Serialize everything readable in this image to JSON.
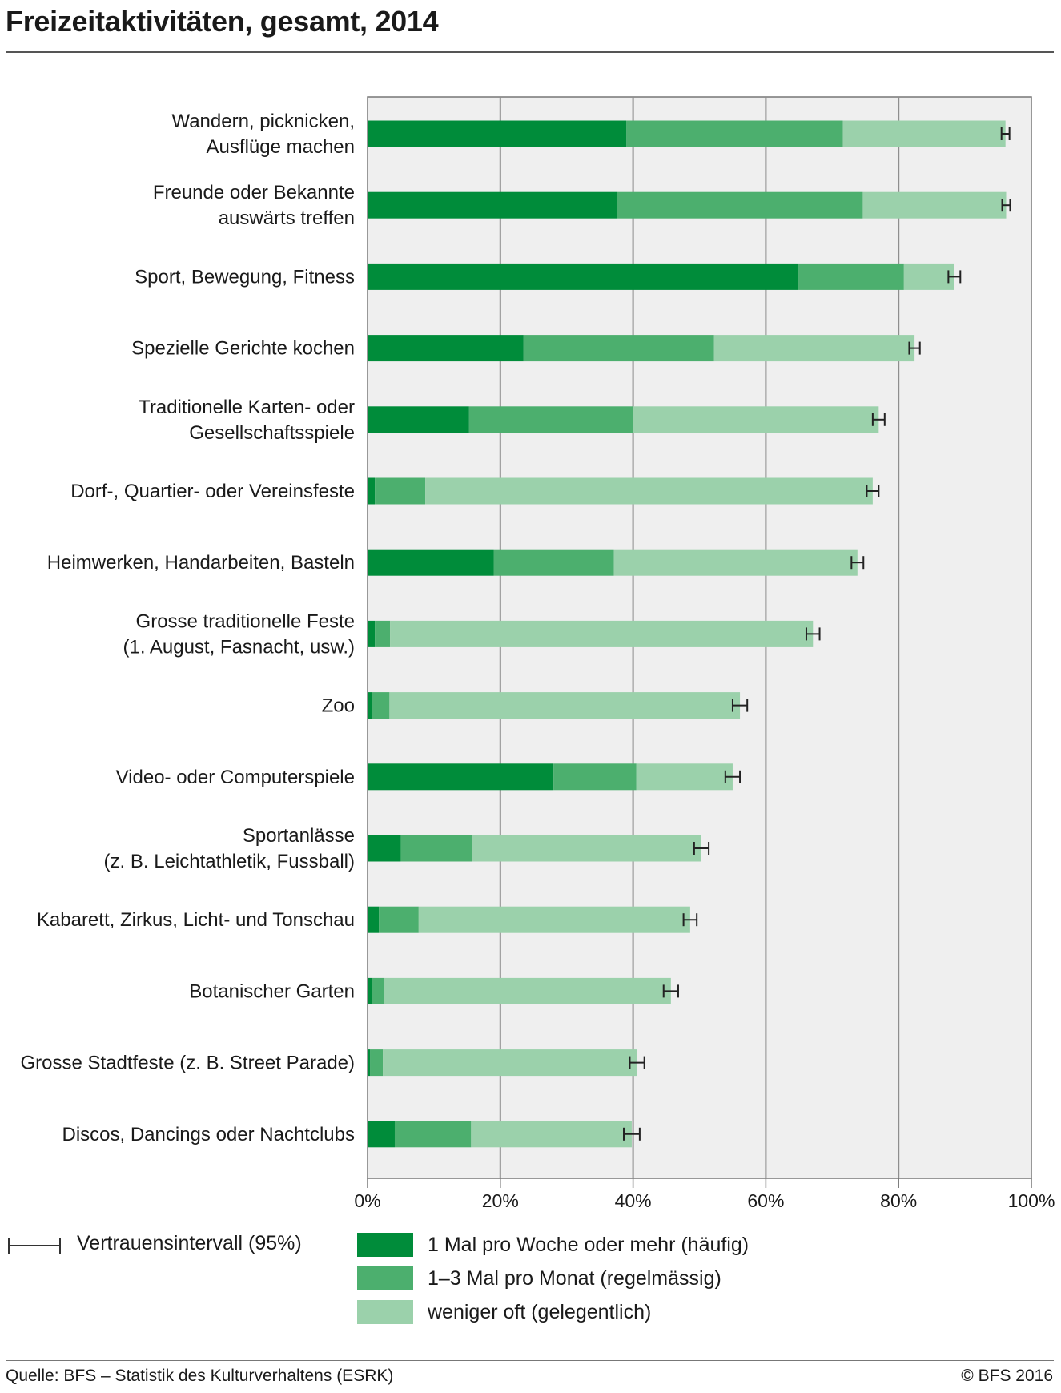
{
  "header": {
    "title": "Freizeitaktivitäten, gesamt, 2014"
  },
  "chart_data": {
    "type": "bar",
    "orientation": "horizontal",
    "stacked": true,
    "title": "Freizeitaktivitäten, gesamt, 2014",
    "xlabel": "",
    "ylabel": "",
    "xlim": [
      0,
      100
    ],
    "x_ticks": [
      "0%",
      "20%",
      "40%",
      "60%",
      "80%",
      "100%"
    ],
    "grid": true,
    "legend_position": "bottom",
    "categories": [
      [
        "Wandern, picknicken,",
        "Ausflüge machen"
      ],
      [
        "Freunde oder Bekannte",
        "auswärts treffen"
      ],
      [
        "Sport, Bewegung, Fitness"
      ],
      [
        "Spezielle Gerichte kochen"
      ],
      [
        "Traditionelle Karten- oder",
        "Gesellschaftsspiele"
      ],
      [
        "Dorf-, Quartier- oder Vereinsfeste"
      ],
      [
        "Heimwerken, Handarbeiten, Basteln"
      ],
      [
        "Grosse traditionelle Feste",
        "(1. August, Fasnacht, usw.)"
      ],
      [
        "Zoo"
      ],
      [
        "Video- oder Computerspiele"
      ],
      [
        "Sportanlässe",
        "(z. B. Leichtathletik, Fussball)"
      ],
      [
        "Kabarett, Zirkus, Licht- und Tonschau"
      ],
      [
        "Botanischer Garten"
      ],
      [
        "Grosse Stadtfeste (z. B. Street Parade)"
      ],
      [
        "Discos, Dancings oder Nachtclubs"
      ]
    ],
    "series": [
      {
        "name": "1 Mal pro Woche oder mehr (häufig)",
        "color": "#008c3a",
        "values": [
          39.0,
          37.6,
          64.9,
          23.5,
          15.3,
          1.1,
          19.0,
          1.1,
          0.7,
          28.0,
          5.0,
          1.7,
          0.7,
          0.4,
          4.1
        ]
      },
      {
        "name": "1–3 Mal pro Monat (regelmässig)",
        "color": "#4caf6e",
        "values": [
          32.6,
          37.0,
          15.9,
          28.7,
          24.7,
          7.6,
          18.1,
          2.3,
          2.6,
          12.5,
          10.8,
          6.0,
          1.8,
          1.9,
          11.5
        ]
      },
      {
        "name": "weniger oft (gelegentlich)",
        "color": "#9bd1ab",
        "values": [
          24.5,
          21.6,
          7.6,
          30.2,
          37.0,
          67.4,
          36.7,
          63.7,
          52.8,
          14.5,
          34.5,
          40.9,
          43.2,
          38.3,
          24.2
        ]
      }
    ],
    "error_bars": {
      "label": "Vertrauensintervall (95%)",
      "ci_halfwidth": [
        0.6,
        0.6,
        0.9,
        0.8,
        0.9,
        0.9,
        0.9,
        1.0,
        1.1,
        1.1,
        1.1,
        1.0,
        1.1,
        1.1,
        1.2
      ]
    }
  },
  "legend": {
    "ci_label": "Vertrauensintervall (95%)",
    "items": [
      {
        "label": "1 Mal pro Woche oder mehr (häufig)",
        "color": "#008c3a"
      },
      {
        "label": "1–3 Mal pro Monat (regelmässig)",
        "color": "#4caf6e"
      },
      {
        "label": "weniger oft (gelegentlich)",
        "color": "#9bd1ab"
      }
    ]
  },
  "footer": {
    "source": "Quelle: BFS – Statistik des Kulturverhaltens (ESRK)",
    "copyright": "© BFS 2016"
  }
}
